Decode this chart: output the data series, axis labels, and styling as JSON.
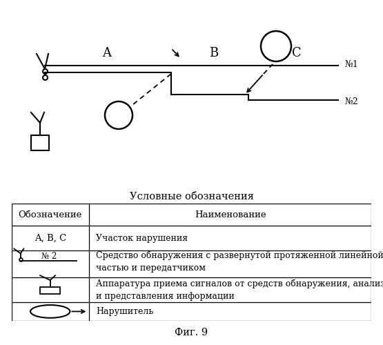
{
  "title": "Условные обозначения",
  "fig_label": "Фиг. 9",
  "background_color": "#ffffff",
  "table_header": [
    "Обозначение",
    "Наименование"
  ],
  "lw": 1.5,
  "col_split": 0.215
}
